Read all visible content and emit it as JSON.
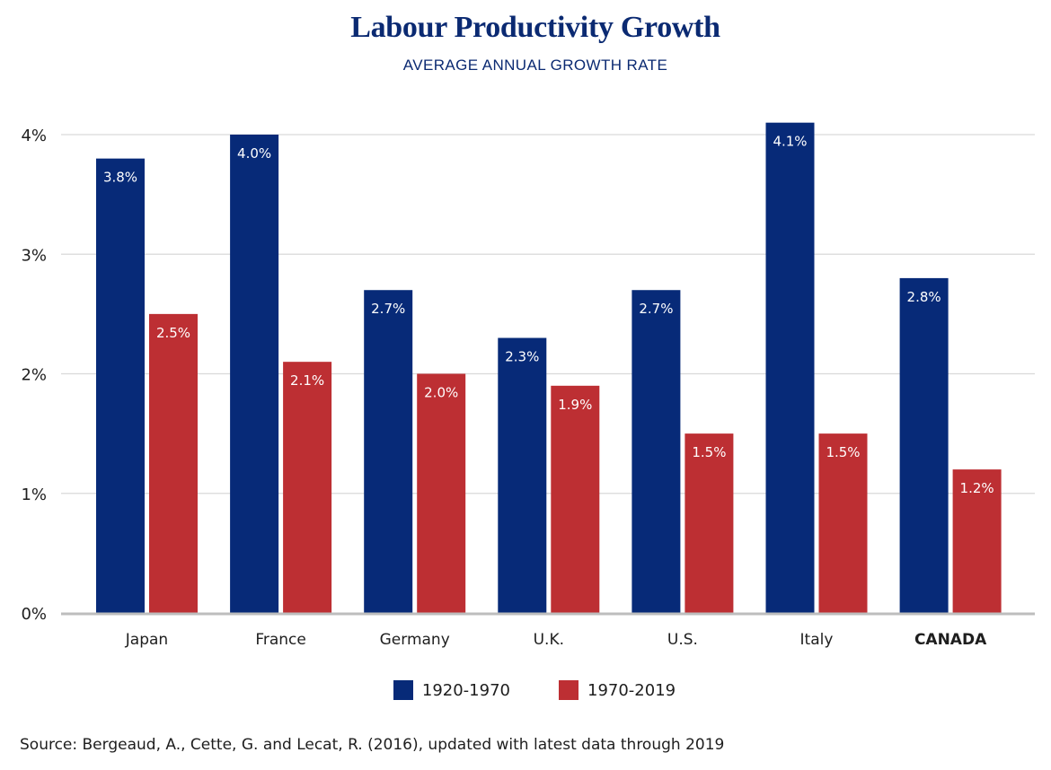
{
  "chart_data": {
    "type": "bar",
    "title": "Labour Productivity Growth",
    "subtitle": "AVERAGE ANNUAL GROWTH RATE",
    "categories": [
      "Japan",
      "France",
      "Germany",
      "U.K.",
      "U.S.",
      "Italy",
      "CANADA"
    ],
    "highlighted_category": "CANADA",
    "series": [
      {
        "name": "1920-1970",
        "color": "#072a78",
        "values": [
          3.8,
          4.0,
          2.7,
          2.3,
          2.7,
          4.1,
          2.8
        ],
        "labels": [
          "3.8%",
          "4.0%",
          "2.7%",
          "2.3%",
          "2.7%",
          "4.1%",
          "2.8%"
        ]
      },
      {
        "name": "1970-2019",
        "color": "#bd2f33",
        "values": [
          2.5,
          2.1,
          2.0,
          1.9,
          1.5,
          1.5,
          1.2
        ],
        "labels": [
          "2.5%",
          "2.1%",
          "2.0%",
          "1.9%",
          "1.5%",
          "1.5%",
          "1.2%"
        ]
      }
    ],
    "yticks": [
      "0%",
      "1%",
      "2%",
      "3%",
      "4%"
    ],
    "ylim": [
      0,
      4
    ],
    "grid": true,
    "legend_position": "bottom-center",
    "source": "Source: Bergeaud, A., Cette, G. and Lecat, R. (2016), updated with latest data through 2019"
  }
}
